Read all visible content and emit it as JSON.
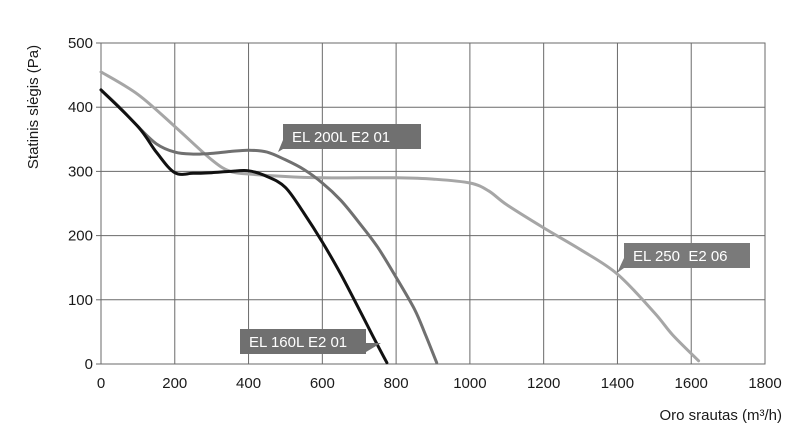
{
  "chart_data": {
    "type": "line",
    "ylabel": "Statinis slėgis (Pa)",
    "xlabel": "Oro srautas (m³/h)",
    "xlim": [
      0,
      1800
    ],
    "ylim": [
      0,
      500
    ],
    "x_ticks": [
      0,
      200,
      400,
      600,
      800,
      1000,
      1200,
      1400,
      1600,
      1800
    ],
    "y_ticks": [
      0,
      100,
      200,
      300,
      400,
      500
    ],
    "grid": true,
    "series": [
      {
        "name": "EL 160L E2 01",
        "color": "#111111",
        "points": [
          [
            0,
            427
          ],
          [
            100,
            370
          ],
          [
            150,
            330
          ],
          [
            200,
            298
          ],
          [
            250,
            297
          ],
          [
            300,
            298
          ],
          [
            350,
            300
          ],
          [
            400,
            301
          ],
          [
            450,
            292
          ],
          [
            500,
            275
          ],
          [
            550,
            235
          ],
          [
            600,
            190
          ],
          [
            650,
            140
          ],
          [
            700,
            85
          ],
          [
            740,
            40
          ],
          [
            775,
            2
          ]
        ]
      },
      {
        "name": "EL 200L E2 01",
        "color": "#707070",
        "points": [
          [
            0,
            427
          ],
          [
            50,
            400
          ],
          [
            100,
            370
          ],
          [
            150,
            343
          ],
          [
            200,
            330
          ],
          [
            250,
            327
          ],
          [
            300,
            328
          ],
          [
            350,
            331
          ],
          [
            400,
            333
          ],
          [
            450,
            330
          ],
          [
            500,
            318
          ],
          [
            550,
            303
          ],
          [
            600,
            282
          ],
          [
            650,
            255
          ],
          [
            700,
            220
          ],
          [
            750,
            182
          ],
          [
            800,
            135
          ],
          [
            850,
            85
          ],
          [
            880,
            45
          ],
          [
            910,
            2
          ]
        ]
      },
      {
        "name": "EL 250  E2 06",
        "color": "#a6a6a6",
        "points": [
          [
            0,
            455
          ],
          [
            100,
            420
          ],
          [
            200,
            370
          ],
          [
            300,
            318
          ],
          [
            350,
            300
          ],
          [
            400,
            296
          ],
          [
            500,
            292
          ],
          [
            600,
            290
          ],
          [
            700,
            290
          ],
          [
            800,
            290
          ],
          [
            900,
            288
          ],
          [
            1000,
            282
          ],
          [
            1050,
            270
          ],
          [
            1100,
            248
          ],
          [
            1200,
            212
          ],
          [
            1300,
            178
          ],
          [
            1400,
            140
          ],
          [
            1500,
            80
          ],
          [
            1550,
            45
          ],
          [
            1620,
            5
          ]
        ]
      }
    ]
  }
}
